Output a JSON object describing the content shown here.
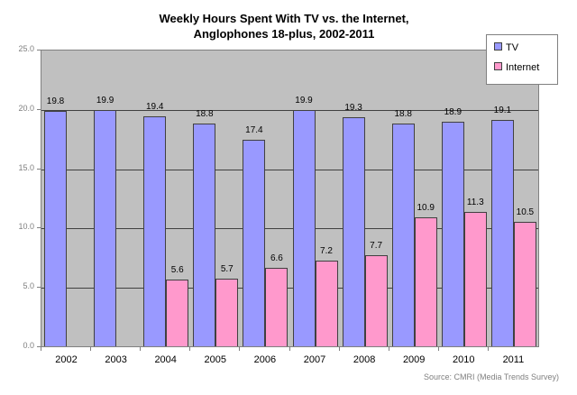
{
  "chart_data": {
    "type": "bar",
    "title": "Weekly Hours Spent With TV vs. the Internet,",
    "subtitle": "Anglophones 18-plus, 2002-2011",
    "xlabel": "",
    "ylabel": "",
    "ylim": [
      0,
      25
    ],
    "yticks": [
      "0.0",
      "5.0",
      "10.0",
      "15.0",
      "20.0",
      "25.0"
    ],
    "grid": true,
    "legend_position": "top-right",
    "categories": [
      "2002",
      "2003",
      "2004",
      "2005",
      "2006",
      "2007",
      "2008",
      "2009",
      "2010",
      "2011"
    ],
    "series": [
      {
        "name": "TV",
        "color": "#9999ff",
        "values": [
          19.8,
          19.9,
          19.4,
          18.8,
          17.4,
          19.9,
          19.3,
          18.8,
          18.9,
          19.1
        ]
      },
      {
        "name": "Internet",
        "color": "#ff99cc",
        "values": [
          null,
          null,
          5.6,
          5.7,
          6.6,
          7.2,
          7.7,
          10.9,
          11.3,
          10.5
        ]
      }
    ],
    "annotations": [
      "Source: CMRI (Media Trends Survey)"
    ]
  },
  "title_line1": "Weekly Hours Spent With TV vs. the Internet,",
  "title_line2": "Anglophones 18-plus, 2002-2011",
  "legend": {
    "tv": "TV",
    "internet": "Internet"
  },
  "source": "Source: CMRI (Media Trends Survey)"
}
